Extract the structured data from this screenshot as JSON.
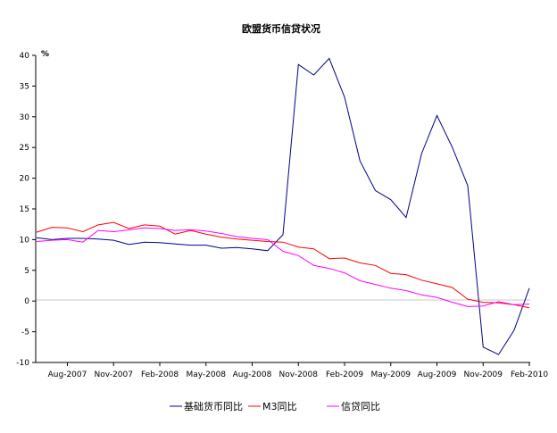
{
  "chart_data": {
    "type": "line",
    "title": "欧盟货币信贷状况",
    "ylabel": "%",
    "xlabel": "",
    "ylim": [
      -10,
      40
    ],
    "yticks": [
      -10,
      -5,
      0,
      5,
      10,
      15,
      20,
      25,
      30,
      35,
      40
    ],
    "grid": false,
    "legend_position": "bottom",
    "x": [
      "Jun-2007",
      "Jul-2007",
      "Aug-2007",
      "Sep-2007",
      "Oct-2007",
      "Nov-2007",
      "Dec-2007",
      "Jan-2008",
      "Feb-2008",
      "Mar-2008",
      "Apr-2008",
      "May-2008",
      "Jun-2008",
      "Jul-2008",
      "Aug-2008",
      "Sep-2008",
      "Oct-2008",
      "Nov-2008",
      "Dec-2008",
      "Jan-2009",
      "Feb-2009",
      "Mar-2009",
      "Apr-2009",
      "May-2009",
      "Jun-2009",
      "Jul-2009",
      "Aug-2009",
      "Sep-2009",
      "Oct-2009",
      "Nov-2009",
      "Dec-2009",
      "Jan-2010",
      "Feb-2010"
    ],
    "xtick_labels": [
      "Aug-2007",
      "Nov-2007",
      "Feb-2008",
      "May-2008",
      "Aug-2008",
      "Nov-2008",
      "Feb-2009",
      "May-2009",
      "Aug-2009",
      "Nov-2009",
      "Feb-2010"
    ],
    "series": [
      {
        "name": "基础货币同比",
        "color": "#00008b",
        "values": [
          10.3,
          10.0,
          10.2,
          10.2,
          10.1,
          9.9,
          9.2,
          9.6,
          9.5,
          9.3,
          9.1,
          9.1,
          8.6,
          8.7,
          8.5,
          8.2,
          10.8,
          38.5,
          36.8,
          39.5,
          33.2,
          22.8,
          18.0,
          16.5,
          13.6,
          24.0,
          30.2,
          25.0,
          18.8,
          -7.5,
          -8.7,
          -4.8,
          2.1
        ]
      },
      {
        "name": "M3同比",
        "color": "#ff0000",
        "values": [
          11.2,
          12.0,
          11.9,
          11.3,
          12.4,
          12.8,
          11.8,
          12.4,
          12.2,
          10.9,
          11.5,
          10.9,
          10.4,
          10.1,
          9.9,
          9.7,
          9.6,
          8.8,
          8.5,
          6.9,
          7.0,
          6.2,
          5.8,
          4.5,
          4.3,
          3.4,
          2.8,
          2.2,
          0.3,
          -0.2,
          -0.3,
          -0.6,
          -1.1
        ]
      },
      {
        "name": "信贷同比",
        "color": "#ff00ff",
        "values": [
          9.7,
          9.9,
          10.0,
          9.6,
          11.5,
          11.3,
          11.6,
          11.9,
          11.8,
          11.5,
          11.6,
          11.4,
          11.0,
          10.5,
          10.2,
          10.0,
          8.1,
          7.4,
          5.8,
          5.3,
          4.6,
          3.3,
          2.7,
          2.1,
          1.7,
          1.0,
          0.6,
          -0.2,
          -0.9,
          -0.8,
          -0.1,
          -0.6,
          -0.5
        ]
      }
    ]
  }
}
